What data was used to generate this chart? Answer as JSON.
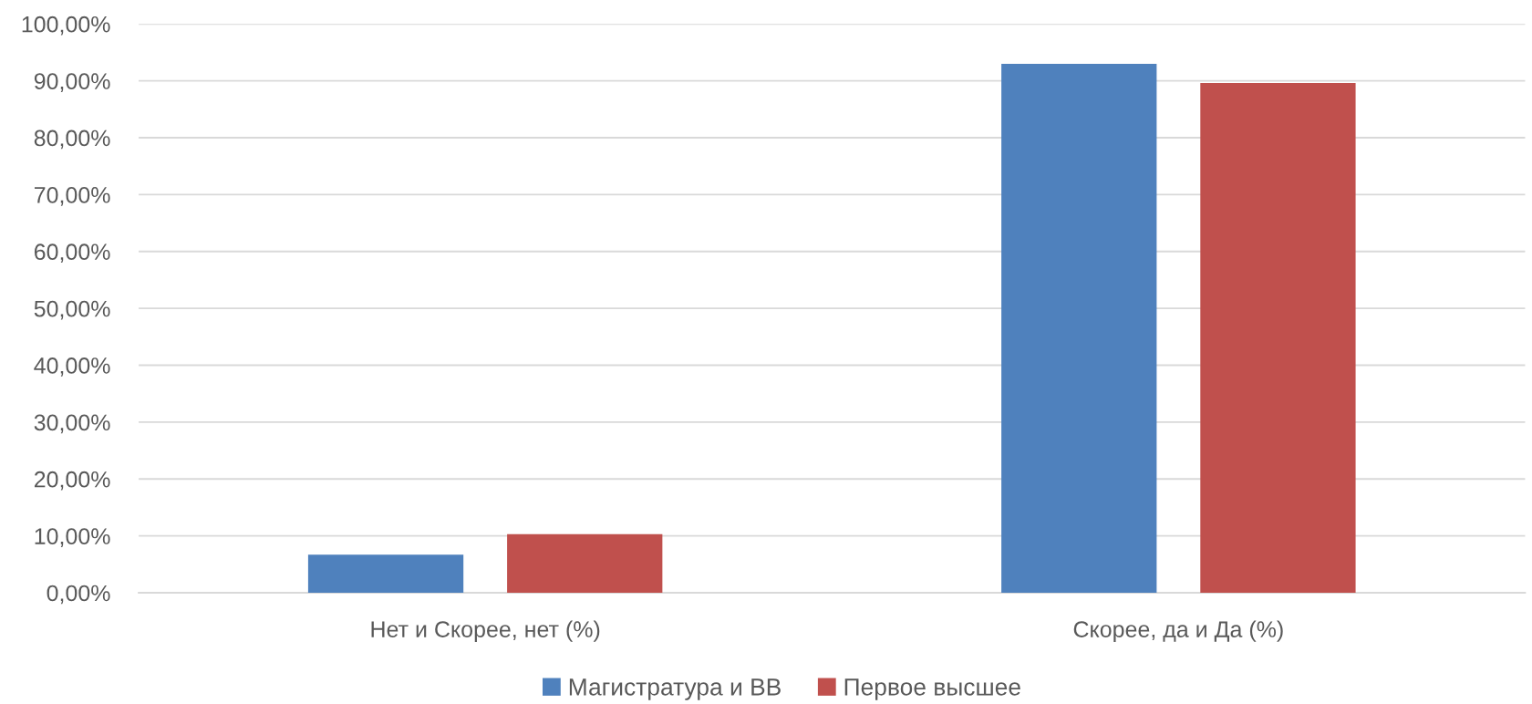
{
  "chart_data": {
    "type": "bar",
    "categories": [
      "Нет и Скорее, нет (%)",
      "Скорее, да и Да (%)"
    ],
    "series": [
      {
        "name": "Магистратура и ВВ",
        "color": "#4f81bd",
        "values": [
          6.7,
          93.0
        ]
      },
      {
        "name": "Первое высшее",
        "color": "#c0504d",
        "values": [
          10.3,
          89.6
        ]
      }
    ],
    "ylim": [
      0,
      100
    ],
    "yticks": [
      {
        "value": 0,
        "label": "0,00%"
      },
      {
        "value": 10,
        "label": "10,00%"
      },
      {
        "value": 20,
        "label": "20,00%"
      },
      {
        "value": 30,
        "label": "30,00%"
      },
      {
        "value": 40,
        "label": "40,00%"
      },
      {
        "value": 50,
        "label": "50,00%"
      },
      {
        "value": 60,
        "label": "60,00%"
      },
      {
        "value": 70,
        "label": "70,00%"
      },
      {
        "value": 80,
        "label": "80,00%"
      },
      {
        "value": 90,
        "label": "90,00%"
      },
      {
        "value": 100,
        "label": "100,00%"
      }
    ],
    "grid": "y",
    "legend": "bottom"
  }
}
